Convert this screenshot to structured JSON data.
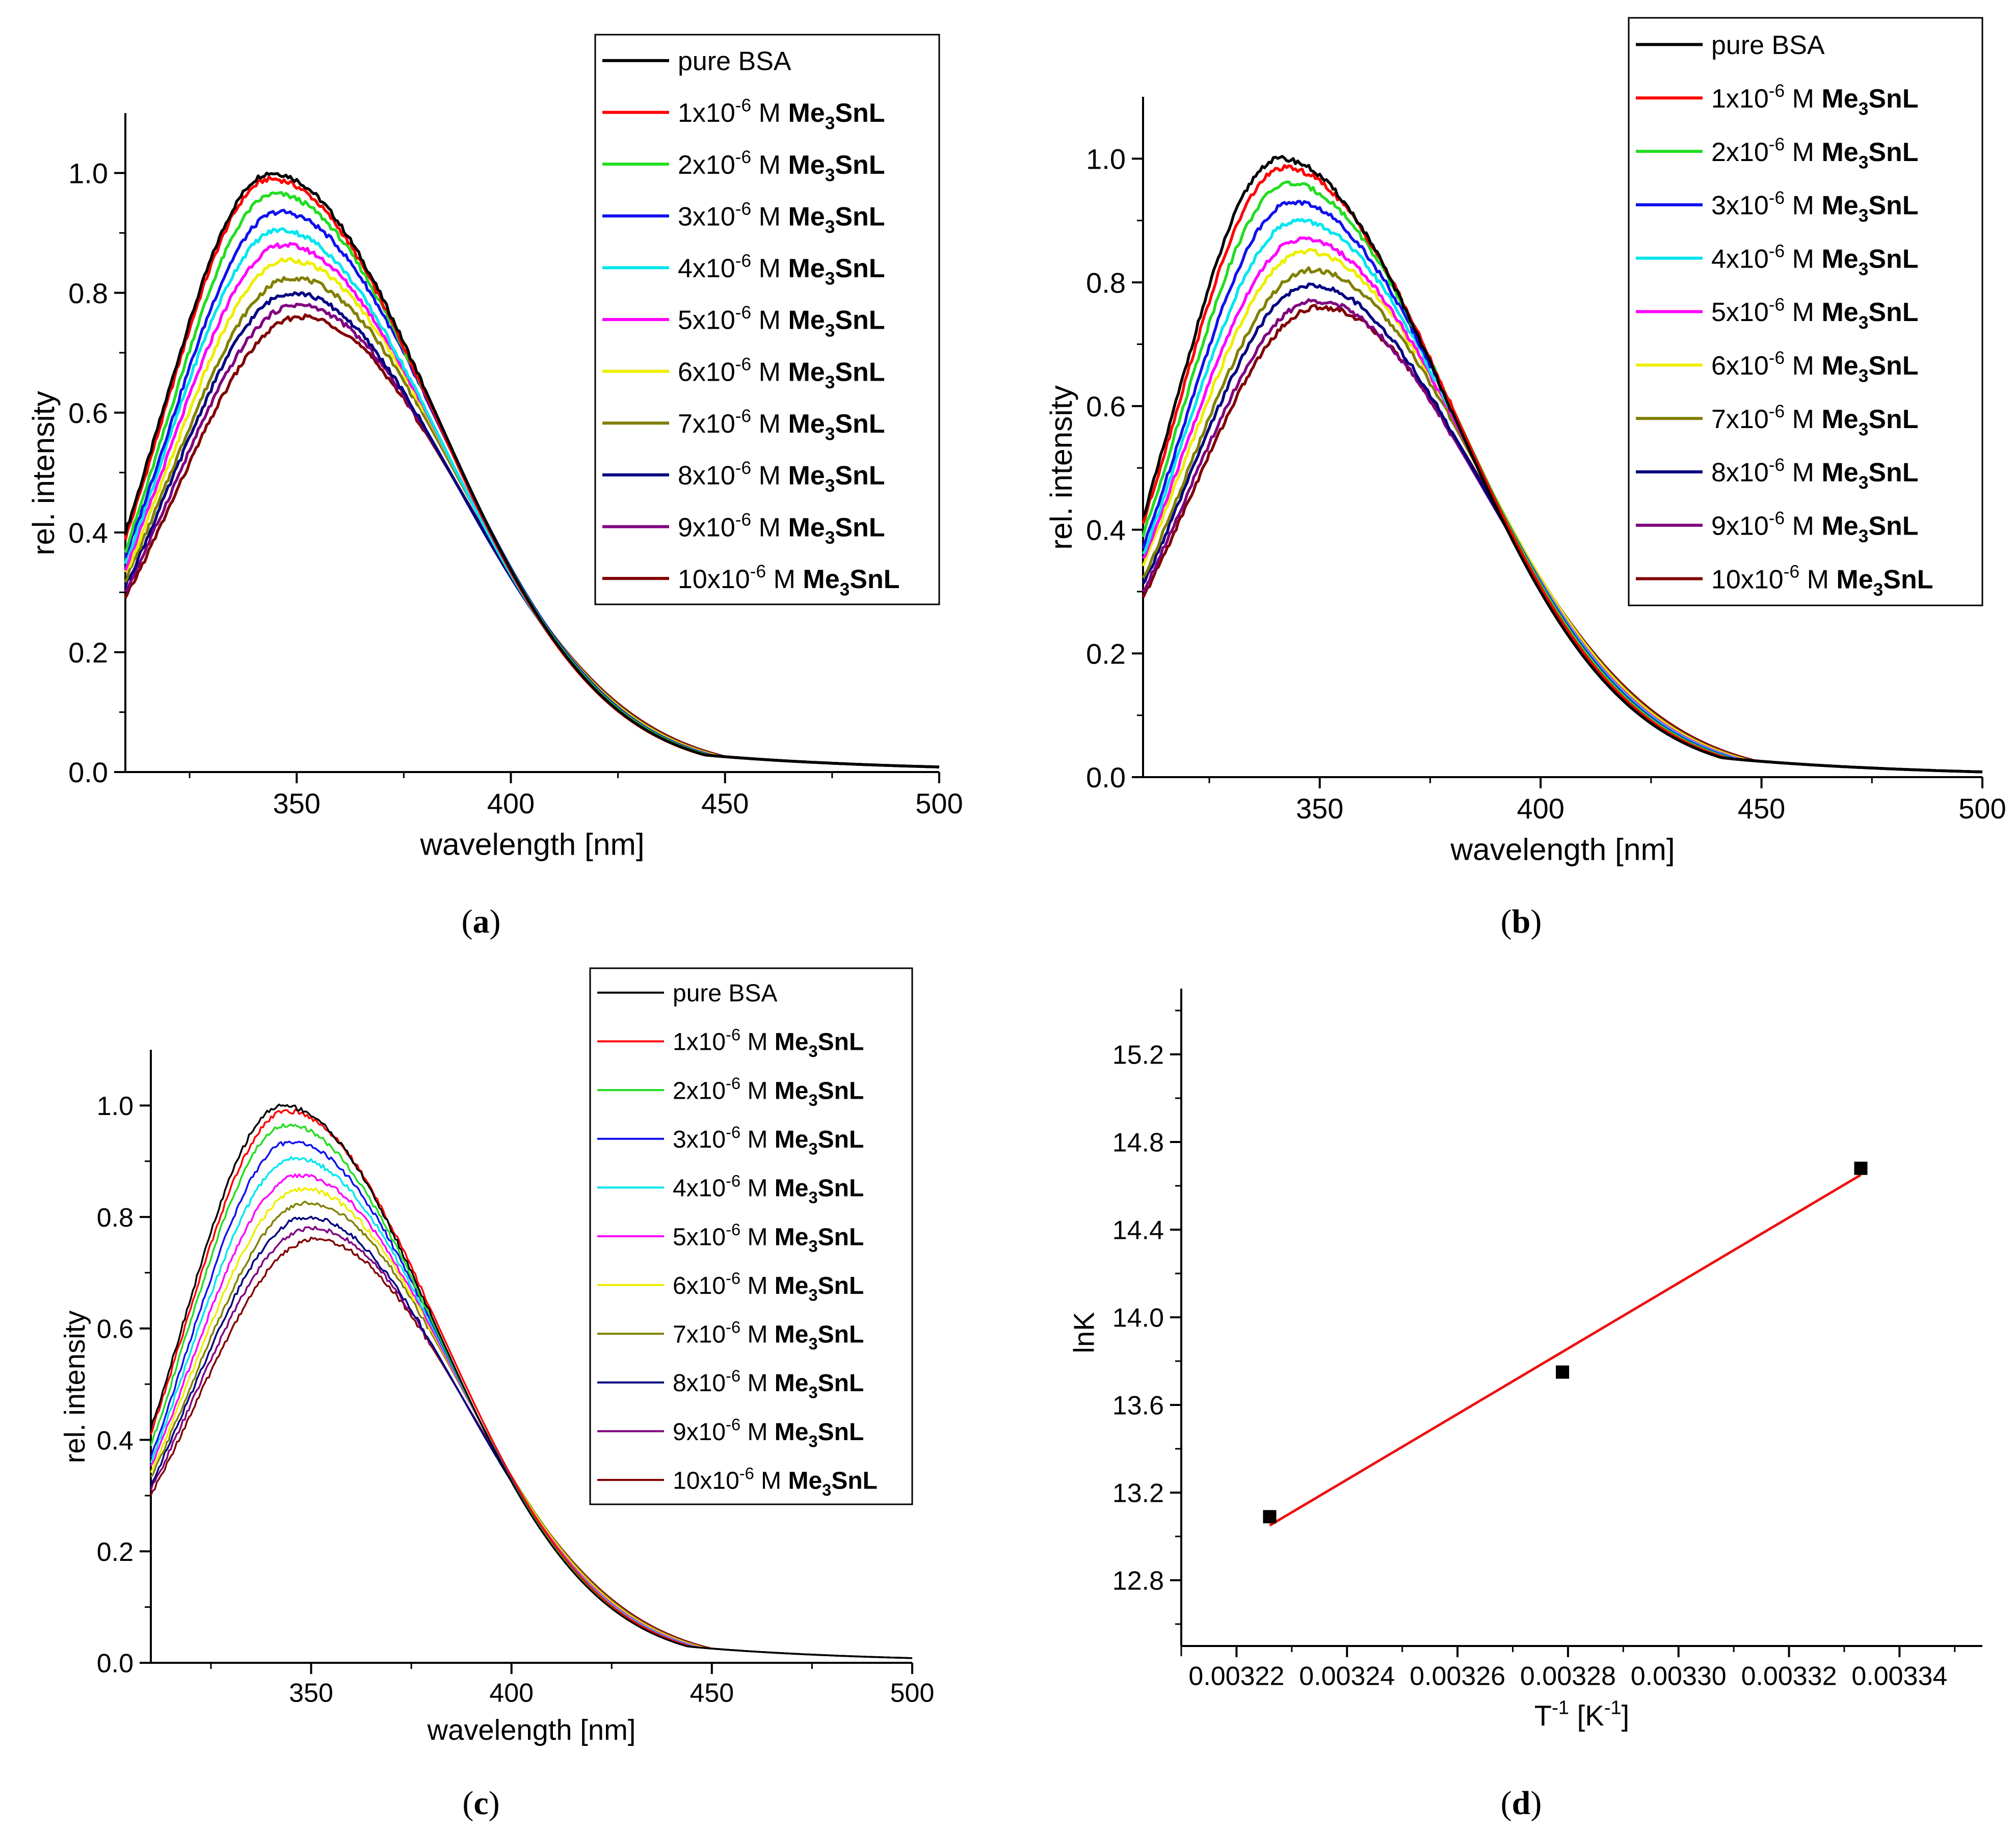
{
  "legend_entries": [
    "pure BSA",
    "1x10",
    "2x10",
    "3x10",
    "4x10",
    "5x10",
    "6x10",
    "7x10",
    "8x10",
    "9x10",
    "10x10"
  ],
  "legend_exponent": "-6",
  "legend_unit": "M",
  "compound": {
    "base": "Me",
    "sub": "3",
    "rest": "SnL"
  },
  "series_colors": [
    "#000000",
    "#ff0000",
    "#22dd22",
    "#1010ee",
    "#00e6ee",
    "#ff00ff",
    "#eeee00",
    "#808000",
    "#000080",
    "#800080",
    "#800000"
  ],
  "fit_color": "#ee1111",
  "chart_data": [
    {
      "panel_label": "(a)",
      "type": "line",
      "xlabel": "wavelength [nm]",
      "ylabel": "rel. intensity",
      "xlim": [
        310,
        500
      ],
      "ylim": [
        0,
        1.1
      ],
      "xticks": [
        350,
        400,
        450,
        500
      ],
      "yticks": [
        "0.0",
        "0.2",
        "0.4",
        "0.6",
        "0.8",
        "1.0"
      ],
      "grid": false,
      "legend_position": "top-right",
      "series": [
        {
          "name": "pure BSA",
          "peak_x": 344,
          "peak_y": 1.0,
          "y_at_310": 0.4
        },
        {
          "name": "1x10-6 M Me3SnL",
          "peak_x": 344,
          "peak_y": 0.99,
          "y_at_310": 0.39
        },
        {
          "name": "2x10-6 M Me3SnL",
          "peak_x": 345,
          "peak_y": 0.965,
          "y_at_310": 0.37
        },
        {
          "name": "3x10-6 M Me3SnL",
          "peak_x": 346,
          "peak_y": 0.935,
          "y_at_310": 0.36
        },
        {
          "name": "4x10-6 M Me3SnL",
          "peak_x": 346,
          "peak_y": 0.905,
          "y_at_310": 0.35
        },
        {
          "name": "5x10-6 M Me3SnL",
          "peak_x": 347,
          "peak_y": 0.88,
          "y_at_310": 0.34
        },
        {
          "name": "6x10-6 M Me3SnL",
          "peak_x": 348,
          "peak_y": 0.855,
          "y_at_310": 0.33
        },
        {
          "name": "7x10-6 M Me3SnL",
          "peak_x": 349,
          "peak_y": 0.825,
          "y_at_310": 0.32
        },
        {
          "name": "8x10-6 M Me3SnL",
          "peak_x": 349,
          "peak_y": 0.8,
          "y_at_310": 0.31
        },
        {
          "name": "9x10-6 M Me3SnL",
          "peak_x": 350,
          "peak_y": 0.78,
          "y_at_310": 0.3
        },
        {
          "name": "10x10-6 M Me3SnL",
          "peak_x": 351,
          "peak_y": 0.76,
          "y_at_310": 0.29
        }
      ]
    },
    {
      "panel_label": "(b)",
      "type": "line",
      "xlabel": "wavelength [nm]",
      "ylabel": "rel. intensity",
      "xlim": [
        310,
        500
      ],
      "ylim": [
        0,
        1.1
      ],
      "xticks": [
        350,
        400,
        450,
        500
      ],
      "yticks": [
        "0.0",
        "0.2",
        "0.4",
        "0.6",
        "0.8",
        "1.0"
      ],
      "grid": false,
      "legend_position": "top-right",
      "series": [
        {
          "name": "pure BSA",
          "peak_x": 341,
          "peak_y": 1.0,
          "y_at_310": 0.42
        },
        {
          "name": "1x10-6 M Me3SnL",
          "peak_x": 342,
          "peak_y": 0.985,
          "y_at_310": 0.41
        },
        {
          "name": "2x10-6 M Me3SnL",
          "peak_x": 343,
          "peak_y": 0.96,
          "y_at_310": 0.39
        },
        {
          "name": "3x10-6 M Me3SnL",
          "peak_x": 344,
          "peak_y": 0.93,
          "y_at_310": 0.37
        },
        {
          "name": "4x10-6 M Me3SnL",
          "peak_x": 345,
          "peak_y": 0.9,
          "y_at_310": 0.36
        },
        {
          "name": "5x10-6 M Me3SnL",
          "peak_x": 346,
          "peak_y": 0.87,
          "y_at_310": 0.35
        },
        {
          "name": "6x10-6 M Me3SnL",
          "peak_x": 347,
          "peak_y": 0.85,
          "y_at_310": 0.34
        },
        {
          "name": "7x10-6 M Me3SnL",
          "peak_x": 348,
          "peak_y": 0.82,
          "y_at_310": 0.32
        },
        {
          "name": "8x10-6 M Me3SnL",
          "peak_x": 348,
          "peak_y": 0.795,
          "y_at_310": 0.31
        },
        {
          "name": "9x10-6 M Me3SnL",
          "peak_x": 349,
          "peak_y": 0.77,
          "y_at_310": 0.3
        },
        {
          "name": "10x10-6 M Me3SnL",
          "peak_x": 350,
          "peak_y": 0.76,
          "y_at_310": 0.29
        }
      ]
    },
    {
      "panel_label": "(c)",
      "type": "line",
      "xlabel": "wavelength [nm]",
      "ylabel": "rel. intensity",
      "xlim": [
        310,
        500
      ],
      "ylim": [
        0,
        1.1
      ],
      "xticks": [
        350,
        400,
        450,
        500
      ],
      "yticks": [
        "0.0",
        "0.2",
        "0.4",
        "0.6",
        "0.8",
        "1.0"
      ],
      "grid": false,
      "legend_position": "top-right",
      "series": [
        {
          "name": "pure BSA",
          "peak_x": 343,
          "peak_y": 1.0,
          "y_at_310": 0.42
        },
        {
          "name": "1x10-6 M Me3SnL",
          "peak_x": 344,
          "peak_y": 0.99,
          "y_at_310": 0.41
        },
        {
          "name": "2x10-6 M Me3SnL",
          "peak_x": 344,
          "peak_y": 0.965,
          "y_at_310": 0.39
        },
        {
          "name": "3x10-6 M Me3SnL",
          "peak_x": 345,
          "peak_y": 0.935,
          "y_at_310": 0.37
        },
        {
          "name": "4x10-6 M Me3SnL",
          "peak_x": 346,
          "peak_y": 0.905,
          "y_at_310": 0.36
        },
        {
          "name": "5x10-6 M Me3SnL",
          "peak_x": 347,
          "peak_y": 0.875,
          "y_at_310": 0.35
        },
        {
          "name": "6x10-6 M Me3SnL",
          "peak_x": 348,
          "peak_y": 0.85,
          "y_at_310": 0.34
        },
        {
          "name": "7x10-6 M Me3SnL",
          "peak_x": 349,
          "peak_y": 0.825,
          "y_at_310": 0.33
        },
        {
          "name": "8x10-6 M Me3SnL",
          "peak_x": 349,
          "peak_y": 0.8,
          "y_at_310": 0.32
        },
        {
          "name": "9x10-6 M Me3SnL",
          "peak_x": 350,
          "peak_y": 0.78,
          "y_at_310": 0.31
        },
        {
          "name": "10x10-6 M Me3SnL",
          "peak_x": 351,
          "peak_y": 0.76,
          "y_at_310": 0.3
        }
      ]
    },
    {
      "panel_label": "(d)",
      "type": "scatter",
      "xlabel": "T",
      "xlabel_sup": "-1",
      "xlabel_rest": " [K",
      "xlabel_sup2": "-1",
      "xlabel_end": "]",
      "ylabel": "lnK",
      "xlim": [
        0.00321,
        0.003355
      ],
      "ylim": [
        12.5,
        15.5
      ],
      "xticks": [
        "0.00322",
        "0.00324",
        "0.00326",
        "0.00328",
        "0.00330",
        "0.00332",
        "0.00334"
      ],
      "yticks": [
        "12.8",
        "13.2",
        "13.6",
        "14.0",
        "14.4",
        "14.8",
        "15.2"
      ],
      "grid": false,
      "points": [
        {
          "x": 0.003226,
          "y": 13.09
        },
        {
          "x": 0.003279,
          "y": 13.75
        },
        {
          "x": 0.003333,
          "y": 14.68
        }
      ],
      "fit_line": {
        "x": [
          0.003226,
          0.003333
        ],
        "y": [
          13.05,
          14.65
        ]
      }
    }
  ]
}
